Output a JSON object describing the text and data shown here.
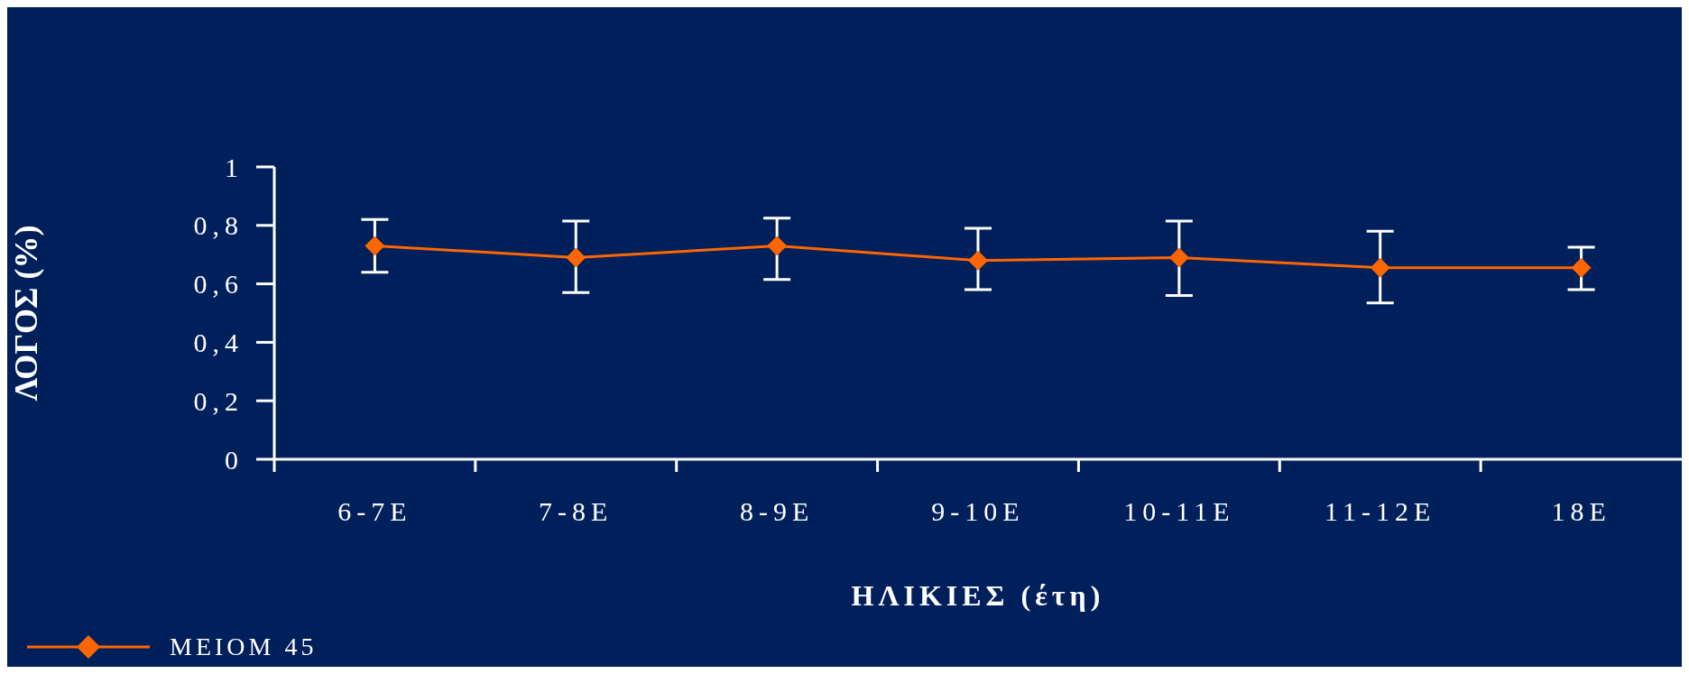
{
  "chart_data": {
    "type": "line",
    "xlabel": "ΗΛΙΚΙΕΣ (έτη)",
    "ylabel": "ΛΟΓΟΣ (%)",
    "categories": [
      "6-7E",
      "7-8E",
      "8-9E",
      "9-10E",
      "10-11E",
      "11-12E",
      "18E"
    ],
    "series": [
      {
        "name": "ΜΕΙΟΜ 45",
        "color": "#ff6600",
        "values": [
          0.73,
          0.69,
          0.73,
          0.68,
          0.69,
          0.655,
          0.655
        ],
        "errors": [
          [
            0.64,
            0.82
          ],
          [
            0.57,
            0.815
          ],
          [
            0.615,
            0.825
          ],
          [
            0.58,
            0.79
          ],
          [
            0.56,
            0.815
          ],
          [
            0.535,
            0.78
          ],
          [
            0.58,
            0.725
          ]
        ]
      }
    ],
    "ylim": [
      0,
      1
    ],
    "yticks": [
      0,
      {
        "value": 0.2,
        "label": "0,2"
      },
      {
        "value": 0.4,
        "label": "0,4"
      },
      {
        "value": 0.6,
        "label": "0,6"
      },
      {
        "value": 0.8,
        "label": "0,8"
      },
      1
    ],
    "marker": "diamond",
    "line_style": "solid",
    "legend": "bottom left",
    "grid": false
  }
}
